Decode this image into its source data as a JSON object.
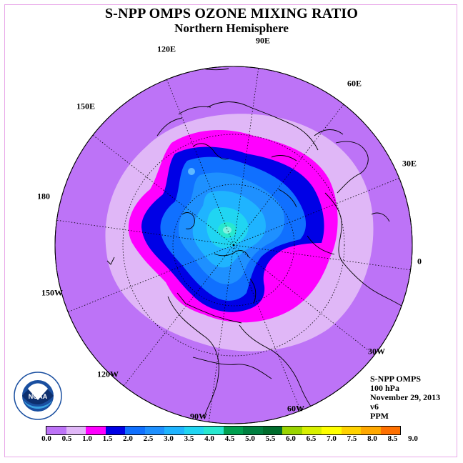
{
  "title": "S-NPP OMPS OZONE MIXING RATIO",
  "subtitle": "Northern Hemisphere",
  "longitude_labels": [
    "90E",
    "60E",
    "30E",
    "0",
    "30W",
    "60W",
    "90W",
    "120W",
    "150W",
    "180",
    "150E",
    "120E"
  ],
  "info": {
    "instrument": "S-NPP OMPS",
    "level": "100 hPa",
    "date": "November 29, 2013",
    "version": "v6",
    "units": "PPM"
  },
  "colorbar": {
    "colors": [
      "#bd73f7",
      "#e0b7f7",
      "#ff00ff",
      "#0000e6",
      "#1070ff",
      "#1e90ff",
      "#1fb4ff",
      "#20d5f2",
      "#27e8cf",
      "#00a050",
      "#008040",
      "#006c2c",
      "#9ad400",
      "#d8f000",
      "#ffff00",
      "#ffd200",
      "#ffa800",
      "#ff7000",
      "#ff0000",
      "#cc0000",
      "#8a5a3a"
    ],
    "ticks": [
      "0.0",
      "0.5",
      "1.0",
      "1.5",
      "2.0",
      "2.5",
      "3.0",
      "3.5",
      "4.0",
      "4.5",
      "5.0",
      "5.5",
      "6.0",
      "6.5",
      "7.0",
      "7.5",
      "8.0",
      "8.5",
      "9.0"
    ]
  },
  "logo": {
    "text": "NOAA",
    "ring_text": "NATIONAL OCEANIC AND ATMOSPHERIC ADMINISTRATION · U.S. DEPARTMENT OF COMMERCE"
  },
  "colors": {
    "outer_band": "#bd73f7",
    "band_05_10": "#e0b7f7",
    "band_10_15": "#ff00ff",
    "band_15_20": "#0000e6",
    "band_20_25": "#1070ff",
    "band_25_30": "#1e90ff",
    "band_30_35": "#1fb4ff",
    "band_35_40": "#20d5f2",
    "band_40_45": "#27e8cf"
  }
}
